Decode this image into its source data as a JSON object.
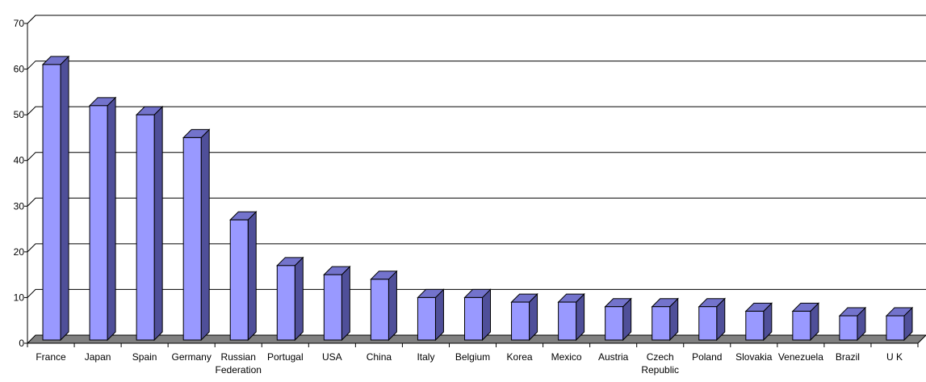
{
  "chart_data": {
    "type": "bar",
    "style": "3d-column",
    "categories": [
      "France",
      "Japan",
      "Spain",
      "Germany",
      "Russian Federation",
      "Portugal",
      "USA",
      "China",
      "Italy",
      "Belgium",
      "Korea",
      "Mexico",
      "Austria",
      "Czech Republic",
      "Poland",
      "Slovakia",
      "Venezuela",
      "Brazil",
      "U K"
    ],
    "category_label_lines": [
      [
        "France"
      ],
      [
        "Japan"
      ],
      [
        "Spain"
      ],
      [
        "Germany"
      ],
      [
        "Russian",
        "Federation"
      ],
      [
        "Portugal"
      ],
      [
        "USA"
      ],
      [
        "China"
      ],
      [
        "Italy"
      ],
      [
        "Belgium"
      ],
      [
        "Korea"
      ],
      [
        "Mexico"
      ],
      [
        "Austria"
      ],
      [
        "Czech",
        "Republic"
      ],
      [
        "Poland"
      ],
      [
        "Slovakia"
      ],
      [
        "Venezuela"
      ],
      [
        "Brazil"
      ],
      [
        "U K"
      ]
    ],
    "values": [
      61,
      52,
      50,
      45,
      27,
      17,
      15,
      14,
      10,
      10,
      9,
      9,
      8,
      8,
      8,
      7,
      7,
      6,
      6
    ],
    "ylim": [
      0,
      70
    ],
    "yticks": [
      0,
      10,
      20,
      30,
      40,
      50,
      60,
      70
    ],
    "grid": true,
    "legend": "none",
    "colors": {
      "bar_front": "#9999FF",
      "bar_side": "#4F4F99",
      "bar_top": "#7373CC",
      "floor": "#808080",
      "gridline": "#000000"
    }
  }
}
